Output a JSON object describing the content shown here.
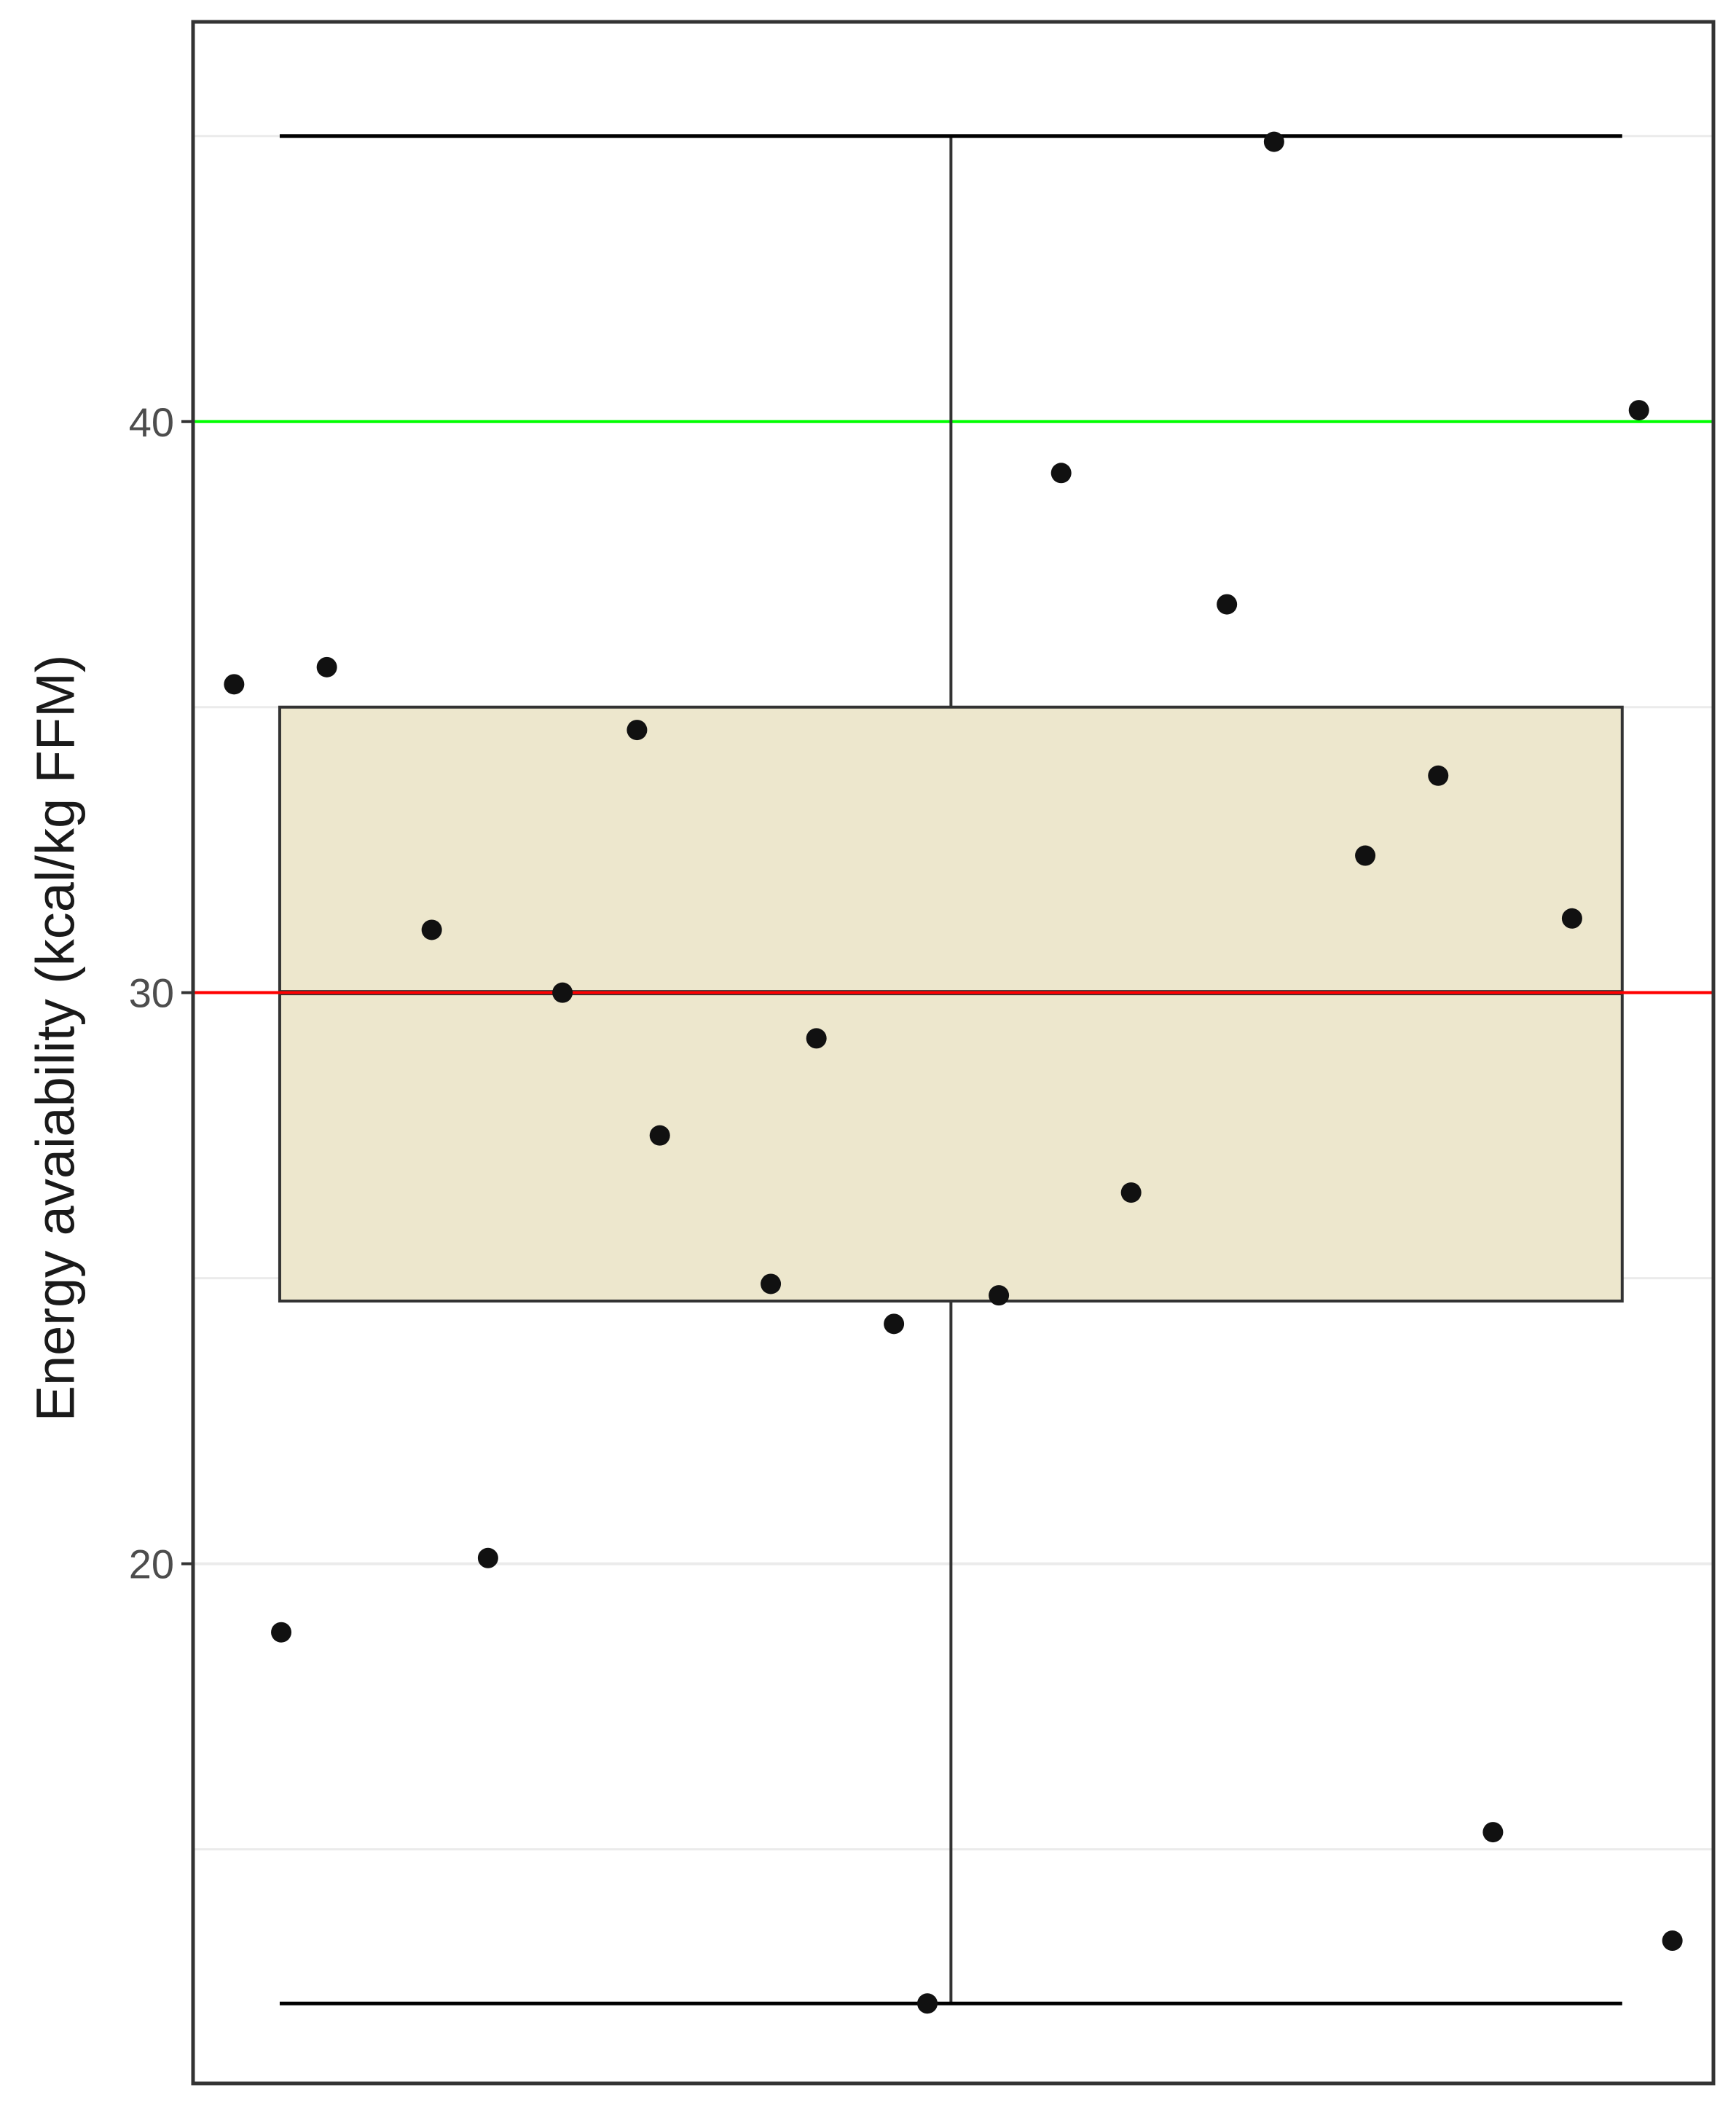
{
  "chart_data": {
    "type": "box",
    "ylabel": "Energy avaiability (kcal/kg FFM)",
    "xlabel": "",
    "title": "",
    "ylim": [
      10.9,
      47.0
    ],
    "y_ticks": [
      20,
      30,
      40
    ],
    "grid": true,
    "box": {
      "q1": 24.6,
      "median": 30.0,
      "q3": 35.0,
      "whisker_low": 12.3,
      "whisker_high": 45.0
    },
    "reference_lines": [
      {
        "value": 40,
        "color": "#00ff00"
      },
      {
        "value": 30,
        "color": "#ff0000"
      }
    ],
    "points": [
      {
        "x": 0.027,
        "y": 35.4
      },
      {
        "x": 0.058,
        "y": 18.8
      },
      {
        "x": 0.088,
        "y": 35.7
      },
      {
        "x": 0.157,
        "y": 31.1
      },
      {
        "x": 0.194,
        "y": 20.1
      },
      {
        "x": 0.243,
        "y": 30.0
      },
      {
        "x": 0.292,
        "y": 34.6
      },
      {
        "x": 0.307,
        "y": 27.5
      },
      {
        "x": 0.38,
        "y": 24.9
      },
      {
        "x": 0.41,
        "y": 29.2
      },
      {
        "x": 0.461,
        "y": 24.2
      },
      {
        "x": 0.483,
        "y": 12.3
      },
      {
        "x": 0.53,
        "y": 24.7
      },
      {
        "x": 0.571,
        "y": 39.1
      },
      {
        "x": 0.617,
        "y": 26.5
      },
      {
        "x": 0.68,
        "y": 36.8
      },
      {
        "x": 0.711,
        "y": 44.9
      },
      {
        "x": 0.771,
        "y": 32.4
      },
      {
        "x": 0.819,
        "y": 33.8
      },
      {
        "x": 0.855,
        "y": 15.3
      },
      {
        "x": 0.907,
        "y": 31.3
      },
      {
        "x": 0.951,
        "y": 40.2
      },
      {
        "x": 0.973,
        "y": 13.4
      }
    ],
    "colors": {
      "box_fill": "#ede7cd",
      "box_stroke": "#333333",
      "point": "#111111",
      "grid": "#ebebeb",
      "panel_border": "#333333"
    }
  }
}
